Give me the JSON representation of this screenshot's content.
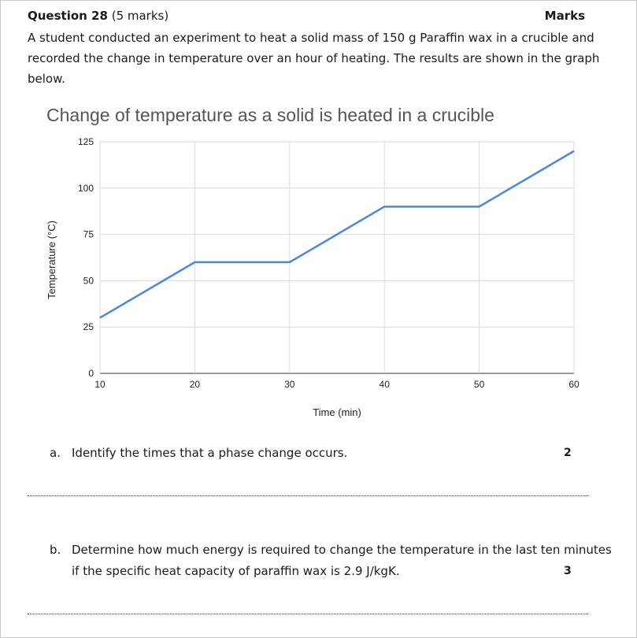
{
  "question": {
    "label": "Question 28",
    "marks_text": "(5 marks)",
    "marks_header": "Marks",
    "intro": "A student conducted an experiment to heat a solid mass of 150 g Paraffin wax in a crucible and recorded the change in temperature over an hour of heating. The results are shown in the graph below."
  },
  "chart_data": {
    "type": "line",
    "title": "Change of temperature as a solid is heated in a crucible",
    "xlabel": "Time (min)",
    "ylabel": "Temperature (°C)",
    "x_ticks": [
      "10",
      "20",
      "30",
      "40",
      "50",
      "60"
    ],
    "y_ticks": [
      "0",
      "25",
      "50",
      "75",
      "100",
      "125"
    ],
    "xlim": [
      10,
      60
    ],
    "ylim": [
      0,
      125
    ],
    "grid": true,
    "series": [
      {
        "color": "#4a86e8",
        "x": [
          10,
          20,
          30,
          40,
          50,
          60
        ],
        "y": [
          30,
          60,
          60,
          90,
          90,
          120
        ]
      }
    ]
  },
  "parts": [
    {
      "letter": "a.",
      "text": "Identify the times that a phase change occurs.",
      "marks": "2"
    },
    {
      "letter": "b.",
      "text_line1": "Determine how much energy is required to change the temperature in the last ten minutes",
      "text_line2": "if the specific heat capacity of paraffin wax is 2.9 J/kgK.",
      "marks": "3"
    }
  ]
}
